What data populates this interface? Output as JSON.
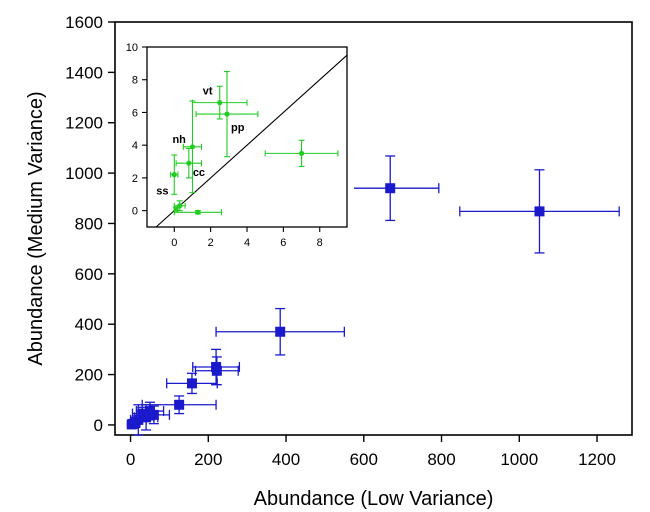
{
  "chart_data": [
    {
      "type": "scatter",
      "role": "main",
      "xlabel": "Abundance (Low Variance)",
      "ylabel": "Abundance (Medium Variance)",
      "xlim": [
        -40,
        1290
      ],
      "ylim": [
        -40,
        1600
      ],
      "xticks": [
        0,
        200,
        400,
        600,
        800,
        1000,
        1200
      ],
      "yticks": [
        0,
        200,
        400,
        600,
        800,
        1000,
        1200,
        1400,
        1600
      ],
      "grid": false,
      "series": [
        {
          "color": "#1a1acc",
          "marker": "square",
          "points": [
            {
              "x": 1052,
              "y": 848,
              "xerr": 205,
              "yerr": 165
            },
            {
              "x": 668,
              "y": 940,
              "xerr": 125,
              "yerr": 128
            },
            {
              "x": 385,
              "y": 370,
              "xerr": 165,
              "yerr": 92
            },
            {
              "x": 220,
              "y": 230,
              "xerr": 60,
              "yerr": 70
            },
            {
              "x": 222,
              "y": 215,
              "xerr": 55,
              "yerr": 55
            },
            {
              "x": 158,
              "y": 165,
              "xerr": 65,
              "yerr": 40
            },
            {
              "x": 125,
              "y": 80,
              "xerr": 95,
              "yerr": 35
            },
            {
              "x": 60,
              "y": 40,
              "xerr": 40,
              "yerr": 35
            },
            {
              "x": 50,
              "y": 55,
              "xerr": 35,
              "yerr": 35
            },
            {
              "x": 40,
              "y": 30,
              "xerr": 30,
              "yerr": 50
            },
            {
              "x": 30,
              "y": 45,
              "xerr": 25,
              "yerr": 25
            },
            {
              "x": 20,
              "y": 20,
              "xerr": 20,
              "yerr": 60
            },
            {
              "x": 12,
              "y": 10,
              "xerr": 12,
              "yerr": 20
            },
            {
              "x": 6,
              "y": 4,
              "xerr": 6,
              "yerr": 6
            },
            {
              "x": 3,
              "y": 2,
              "xerr": 3,
              "yerr": 3
            }
          ]
        }
      ]
    },
    {
      "type": "scatter",
      "role": "inset",
      "xlim": [
        -1.5,
        9.5
      ],
      "ylim": [
        -1,
        10
      ],
      "xticks": [
        0,
        2,
        4,
        6,
        8
      ],
      "yticks": [
        0,
        2,
        4,
        6,
        8,
        10
      ],
      "reference_line": "y = x",
      "grid": false,
      "series": [
        {
          "color": "#22cc22",
          "marker": "circle",
          "points": [
            {
              "x": 2.5,
              "y": 6.6,
              "xerr": 1.5,
              "yerr": 1.0,
              "label": "vt"
            },
            {
              "x": 2.9,
              "y": 5.9,
              "xerr": 1.7,
              "yerr": 2.6,
              "label": "pp"
            },
            {
              "x": 7.0,
              "y": 3.5,
              "xerr": 2.0,
              "yerr": 0.8
            },
            {
              "x": 1.0,
              "y": 3.9,
              "xerr": 0.5,
              "yerr": 2.8,
              "label": "nh"
            },
            {
              "x": 0.8,
              "y": 2.9,
              "xerr": 0.7,
              "yerr": 0.9,
              "label": "cc"
            },
            {
              "x": 0.0,
              "y": 2.2,
              "xerr": 0.2,
              "yerr": 1.2,
              "label": "ss"
            },
            {
              "x": 1.3,
              "y": -0.1,
              "xerr": 1.3,
              "yerr": 0.1
            },
            {
              "x": 0.3,
              "y": 0.3,
              "xerr": 0.3,
              "yerr": 0.3
            },
            {
              "x": 0.1,
              "y": 0.1,
              "xerr": 0.1,
              "yerr": 0.1
            }
          ]
        }
      ]
    }
  ]
}
